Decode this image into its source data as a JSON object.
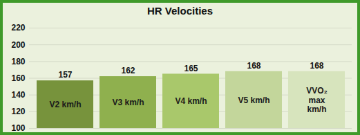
{
  "chart_data": {
    "type": "bar",
    "title": "HR Velocities",
    "categories": [
      "V2 km/h",
      "V3 km/h",
      "V4 km/h",
      "V5 km/h",
      "VVO₂ max km/h"
    ],
    "values": [
      157,
      162,
      165,
      168,
      168
    ],
    "colors": [
      "#77933c",
      "#8fb04e",
      "#a9c86b",
      "#c3d69b",
      "#d7e4bd"
    ],
    "ylim": [
      100,
      220
    ],
    "yticks": [
      100,
      120,
      140,
      160,
      180,
      200,
      220
    ],
    "grid": true,
    "data_labels": true,
    "tick_labels": "y"
  }
}
